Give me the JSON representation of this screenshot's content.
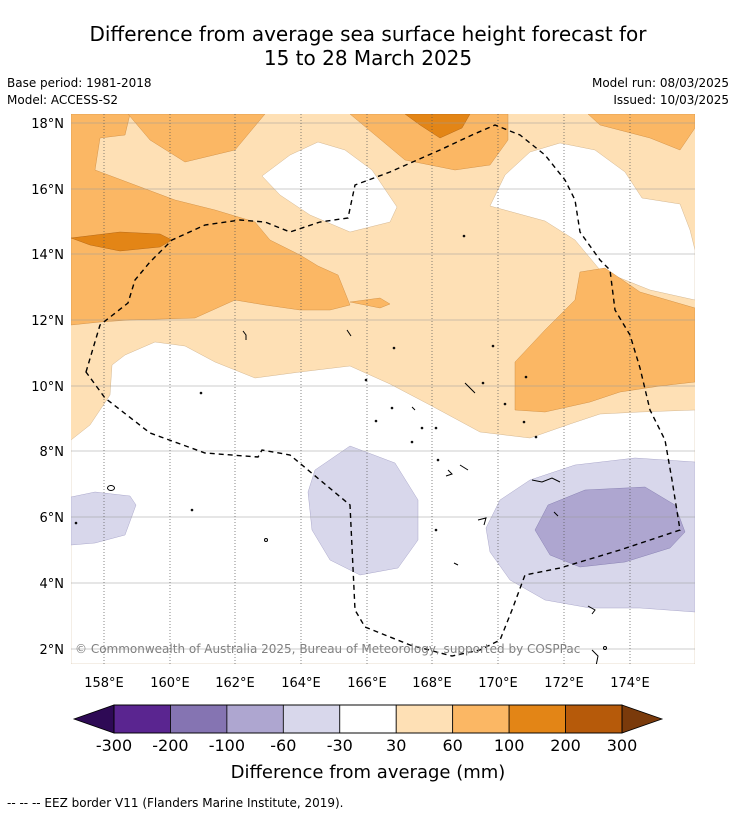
{
  "title": {
    "line1": "Difference from average sea surface height forecast for",
    "line2": "15 to 28 March 2025"
  },
  "meta": {
    "base_period": "Base period: 1981-2018",
    "model": "Model: ACCESS-S2",
    "model_run": "Model run: 08/03/2025",
    "issued": "Issued: 10/03/2025"
  },
  "map": {
    "lat_labels": [
      "18°N",
      "16°N",
      "14°N",
      "12°N",
      "10°N",
      "8°N",
      "6°N",
      "4°N",
      "2°N"
    ],
    "lon_labels": [
      "158°E",
      "160°E",
      "162°E",
      "164°E",
      "166°E",
      "168°E",
      "170°E",
      "172°E",
      "174°E"
    ],
    "copyright": "© Commonwealth of Australia 2025, Bureau of Meteorology, supported by COSPPac"
  },
  "colorbar": {
    "ticks": [
      "-300",
      "-200",
      "-100",
      "-60",
      "-30",
      "30",
      "60",
      "100",
      "200",
      "300"
    ],
    "colors": [
      "#5a2590",
      "#8574b2",
      "#aea6d0",
      "#d8d7eb",
      "#ffffff",
      "#fee0b5",
      "#fbb764",
      "#e38516",
      "#b65a0a"
    ],
    "under_color": "#2e0a55",
    "over_color": "#7a3a0b",
    "label": "Difference from average (mm)"
  },
  "footer": {
    "legend": "--  --  -- EEZ border V11 (Flanders Marine Institute, 2019)."
  }
}
